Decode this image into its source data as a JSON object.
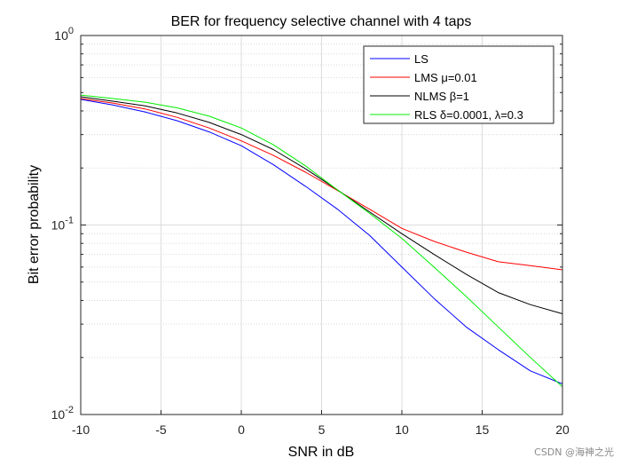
{
  "chart_data": {
    "type": "line",
    "title": "BER for frequency selective channel with 4 taps",
    "xlabel": "SNR in dB",
    "ylabel": "Bit error probability",
    "xlim": [
      -10,
      20
    ],
    "ylim": [
      0.01,
      1
    ],
    "yscale": "log",
    "x_ticks": [
      -10,
      -5,
      0,
      5,
      10,
      15,
      20
    ],
    "x_tick_labels": [
      "-10",
      "-5",
      "0",
      "5",
      "10",
      "15",
      "20"
    ],
    "y_ticks": [
      {
        "value": 1,
        "base": "10",
        "exp": "0"
      },
      {
        "value": 0.1,
        "base": "10",
        "exp": "-1"
      },
      {
        "value": 0.01,
        "base": "10",
        "exp": "-2"
      }
    ],
    "grid": true,
    "legend_position": "top-right",
    "x": [
      -10,
      -8,
      -6,
      -4,
      -2,
      0,
      2,
      4,
      6,
      8,
      10,
      12,
      14,
      16,
      18,
      20
    ],
    "series": [
      {
        "name": "LS",
        "color": "#0000ff",
        "values": [
          0.46,
          0.43,
          0.395,
          0.355,
          0.31,
          0.262,
          0.208,
          0.16,
          0.121,
          0.088,
          0.06,
          0.041,
          0.029,
          0.022,
          0.017,
          0.0145
        ]
      },
      {
        "name": "LMS μ=0.01",
        "color": "#ff0000",
        "values": [
          0.465,
          0.44,
          0.41,
          0.37,
          0.325,
          0.278,
          0.233,
          0.19,
          0.152,
          0.121,
          0.096,
          0.082,
          0.072,
          0.064,
          0.061,
          0.058
        ]
      },
      {
        "name": "NLMS β=1",
        "color": "#000000",
        "values": [
          0.475,
          0.45,
          0.425,
          0.39,
          0.348,
          0.3,
          0.25,
          0.198,
          0.153,
          0.117,
          0.09,
          0.07,
          0.055,
          0.044,
          0.038,
          0.034
        ]
      },
      {
        "name": "RLS δ=0.0001, λ=0.3",
        "color": "#00ee00",
        "values": [
          0.485,
          0.465,
          0.445,
          0.415,
          0.375,
          0.325,
          0.265,
          0.205,
          0.153,
          0.115,
          0.085,
          0.06,
          0.042,
          0.029,
          0.02,
          0.014
        ]
      }
    ]
  },
  "watermark": "CSDN @海神之光"
}
